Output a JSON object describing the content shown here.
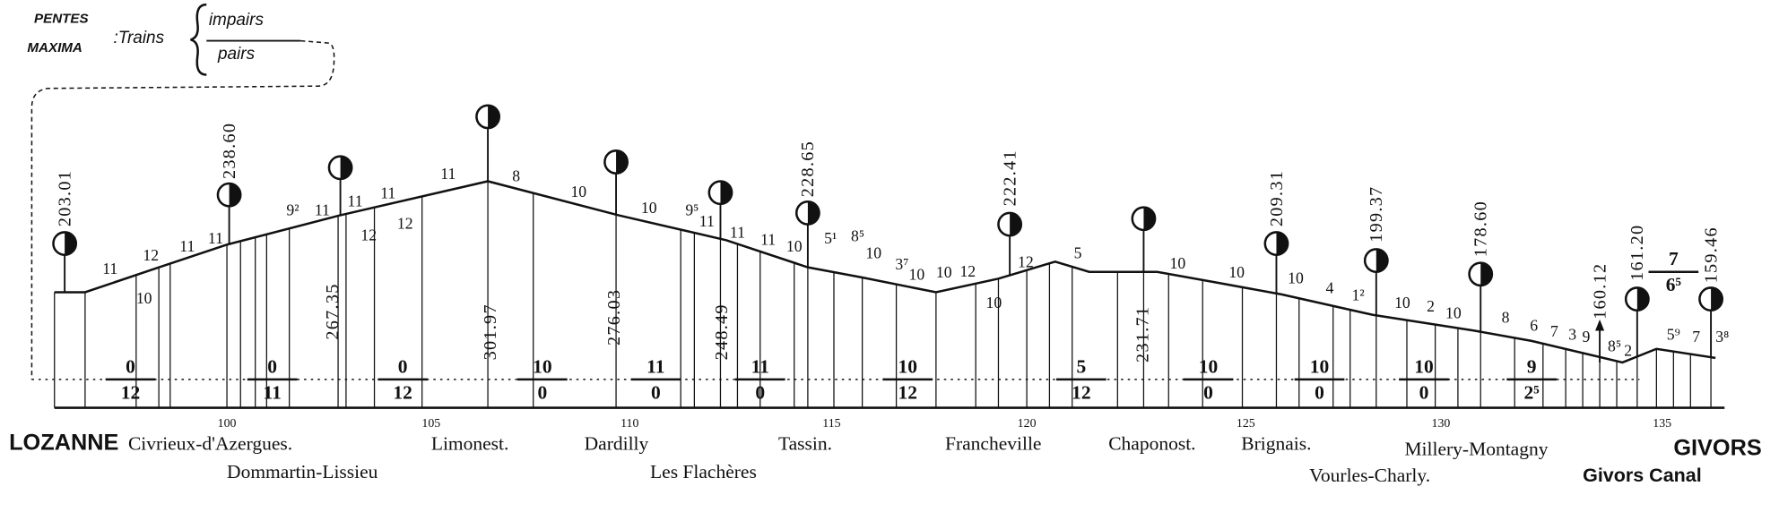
{
  "legend": {
    "line1": "PENTES",
    "line2": "MAXIMA",
    "trains": ":Trains",
    "odd": "impairs",
    "even": "pairs"
  },
  "km_labels": [
    "100",
    "105",
    "110",
    "115",
    "120",
    "125",
    "130",
    "135"
  ],
  "stations": [
    "LOZANNE",
    "Civrieux-d'Azergues.",
    "Dommartin-Lissieu",
    "Limonest.",
    "Dardilly",
    "Les Flachères",
    "Tassin.",
    "Francheville",
    "Chaponost.",
    "Brignais.",
    "Vourles-Charly.",
    "Millery-Montagny",
    "Givors Canal",
    "GIVORS"
  ],
  "altitudes": [
    "203.01",
    "238.60",
    "267.35",
    "301.97",
    "276.03",
    "248.49",
    "228.65",
    "222.41",
    "231.71",
    "209.31",
    "199.37",
    "178.60",
    "160.12",
    "161.20",
    "159.46"
  ],
  "gradients": [
    {
      "odd": "0",
      "even": "12"
    },
    {
      "odd": "0",
      "even": "11"
    },
    {
      "odd": "0",
      "even": "12"
    },
    {
      "odd": "10",
      "even": "0"
    },
    {
      "odd": "11",
      "even": "0"
    },
    {
      "odd": "11",
      "even": "0"
    },
    {
      "odd": "10",
      "even": "12"
    },
    {
      "odd": "5",
      "even": "12"
    },
    {
      "odd": "10",
      "even": "0"
    },
    {
      "odd": "10",
      "even": "0"
    },
    {
      "odd": "10",
      "even": "0"
    },
    {
      "odd": "9",
      "even": "2⁵"
    },
    {
      "odd": "7",
      "even": "6⁵"
    }
  ],
  "profile_labels": [
    "11",
    "12",
    "10",
    "11",
    "11",
    "9²",
    "11",
    "11",
    "11",
    "12",
    "12",
    "11",
    "8",
    "10",
    "10",
    "9⁵",
    "11",
    "11",
    "11",
    "10",
    "5¹",
    "8⁵",
    "10",
    "3⁷",
    "10",
    "10",
    "12",
    "12",
    "10",
    "5",
    "10",
    "10",
    "10",
    "4",
    "1²",
    "10",
    "2",
    "10",
    "8",
    "6",
    "7",
    "3",
    "9",
    "8⁵",
    "2",
    "5⁹",
    "7",
    "3⁸"
  ]
}
